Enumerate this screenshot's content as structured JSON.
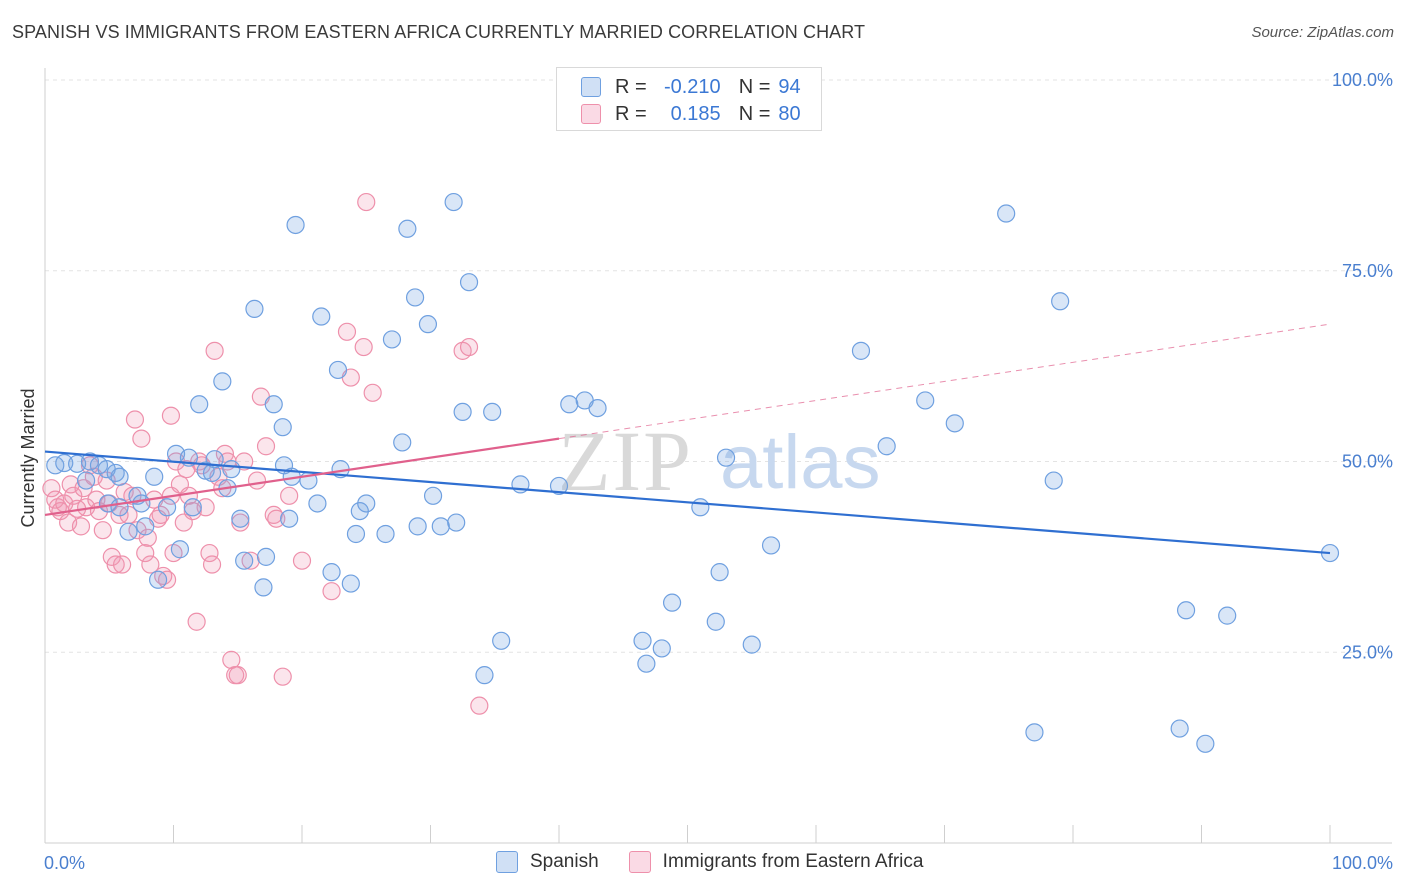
{
  "header": {
    "title": "SPANISH VS IMMIGRANTS FROM EASTERN AFRICA CURRENTLY MARRIED CORRELATION CHART",
    "source": "Source: ZipAtlas.com"
  },
  "legend": {
    "row1": {
      "r_label": "R =",
      "r_value": "-0.210",
      "n_label": "N =",
      "n_value": "94"
    },
    "row2": {
      "r_label": "R =",
      "r_value": "0.185",
      "n_label": "N =",
      "n_value": "80"
    }
  },
  "bottom_legend": {
    "series1": "Spanish",
    "series2": "Immigrants from Eastern Africa"
  },
  "watermark": {
    "zip": "ZIP",
    "atlas": "atlas"
  },
  "colors": {
    "blue": "#6fa0e0",
    "blue_fill": "rgba(120,165,225,0.28)",
    "blue_line": "#2f6fd1",
    "pink": "#ee90ab",
    "pink_fill": "rgba(240,150,180,0.25)",
    "pink_line": "#e0608c"
  },
  "chart_data": {
    "type": "scatter",
    "title": "SPANISH VS IMMIGRANTS FROM EASTERN AFRICA CURRENTLY MARRIED CORRELATION CHART",
    "xlabel": "",
    "ylabel": "Currently Married",
    "xlim": [
      0,
      100
    ],
    "ylim": [
      0,
      100
    ],
    "x_tick_labels": [
      "0.0%",
      "100.0%"
    ],
    "y_tick_labels": [
      "25.0%",
      "50.0%",
      "75.0%",
      "100.0%"
    ],
    "y_ticks": [
      25,
      50,
      75,
      100
    ],
    "grid": true,
    "legend_position": "top-center",
    "series": [
      {
        "name": "Spanish",
        "r": -0.21,
        "n": 94,
        "trend": {
          "x": [
            0,
            100
          ],
          "y": [
            51.3,
            38.0
          ]
        },
        "points": [
          [
            0.8,
            49.5
          ],
          [
            1.5,
            49.8
          ],
          [
            2.5,
            49.7
          ],
          [
            3.2,
            47.5
          ],
          [
            3.5,
            50.0
          ],
          [
            4.2,
            49.5
          ],
          [
            4.8,
            49.0
          ],
          [
            4.9,
            44.5
          ],
          [
            5.5,
            48.5
          ],
          [
            5.8,
            48.0
          ],
          [
            6.5,
            40.8
          ],
          [
            7.2,
            45.5
          ],
          [
            7.5,
            44.5
          ],
          [
            7.8,
            41.5
          ],
          [
            8.5,
            48.0
          ],
          [
            8.8,
            34.5
          ],
          [
            9.5,
            44.0
          ],
          [
            10.2,
            51.0
          ],
          [
            10.5,
            38.5
          ],
          [
            11.2,
            50.5
          ],
          [
            11.5,
            44.0
          ],
          [
            12.0,
            57.5
          ],
          [
            12.5,
            48.8
          ],
          [
            13.0,
            48.5
          ],
          [
            13.2,
            50.3
          ],
          [
            13.8,
            60.5
          ],
          [
            14.2,
            46.5
          ],
          [
            14.5,
            49.0
          ],
          [
            15.2,
            42.5
          ],
          [
            15.5,
            37.0
          ],
          [
            16.3,
            70.0
          ],
          [
            17.0,
            33.5
          ],
          [
            17.2,
            37.5
          ],
          [
            17.8,
            57.5
          ],
          [
            18.6,
            49.5
          ],
          [
            18.5,
            54.5
          ],
          [
            19.0,
            42.5
          ],
          [
            19.2,
            48.0
          ],
          [
            19.5,
            81.0
          ],
          [
            20.5,
            47.5
          ],
          [
            21.2,
            44.5
          ],
          [
            21.5,
            69.0
          ],
          [
            22.3,
            35.5
          ],
          [
            22.8,
            62.0
          ],
          [
            23.0,
            49.0
          ],
          [
            23.8,
            34.0
          ],
          [
            24.2,
            40.5
          ],
          [
            24.5,
            43.5
          ],
          [
            25.0,
            44.5
          ],
          [
            26.5,
            40.5
          ],
          [
            27.0,
            66.0
          ],
          [
            27.8,
            52.5
          ],
          [
            28.2,
            80.5
          ],
          [
            28.8,
            71.5
          ],
          [
            29.0,
            41.5
          ],
          [
            29.8,
            68.0
          ],
          [
            30.2,
            45.5
          ],
          [
            30.8,
            41.5
          ],
          [
            31.8,
            84.0
          ],
          [
            32.0,
            42.0
          ],
          [
            32.5,
            56.5
          ],
          [
            33.0,
            73.5
          ],
          [
            34.2,
            22.0
          ],
          [
            34.8,
            56.5
          ],
          [
            35.5,
            26.5
          ],
          [
            37.0,
            47.0
          ],
          [
            40.0,
            46.8
          ],
          [
            40.8,
            57.5
          ],
          [
            42.0,
            58.0
          ],
          [
            43.0,
            57.0
          ],
          [
            46.5,
            26.5
          ],
          [
            46.8,
            23.5
          ],
          [
            48.0,
            25.5
          ],
          [
            48.8,
            31.5
          ],
          [
            51.0,
            44.0
          ],
          [
            52.2,
            29.0
          ],
          [
            52.5,
            35.5
          ],
          [
            53.0,
            50.5
          ],
          [
            55.0,
            26.0
          ],
          [
            56.5,
            39.0
          ],
          [
            63.5,
            64.5
          ],
          [
            65.5,
            52.0
          ],
          [
            68.5,
            58.0
          ],
          [
            70.8,
            55.0
          ],
          [
            74.8,
            82.5
          ],
          [
            77.0,
            14.5
          ],
          [
            78.5,
            47.5
          ],
          [
            79.0,
            71.0
          ],
          [
            88.3,
            15.0
          ],
          [
            88.8,
            30.5
          ],
          [
            90.3,
            13.0
          ],
          [
            92.0,
            29.8
          ],
          [
            100.0,
            38.0
          ],
          [
            5.8,
            44.0
          ]
        ]
      },
      {
        "name": "Immigrants from Eastern Africa",
        "r": 0.185,
        "n": 80,
        "trend": {
          "x": [
            0,
            40
          ],
          "y": [
            43.0,
            53.0
          ]
        },
        "trend_dashed": {
          "x": [
            40,
            100
          ],
          "y": [
            53.0,
            68.0
          ]
        },
        "points": [
          [
            0.5,
            46.5
          ],
          [
            0.8,
            45.0
          ],
          [
            1.0,
            44.0
          ],
          [
            1.2,
            43.5
          ],
          [
            1.5,
            44.5
          ],
          [
            1.8,
            42.0
          ],
          [
            2.0,
            47.0
          ],
          [
            2.2,
            45.5
          ],
          [
            2.5,
            43.8
          ],
          [
            2.8,
            41.5
          ],
          [
            3.0,
            46.5
          ],
          [
            3.2,
            44.0
          ],
          [
            3.5,
            49.5
          ],
          [
            3.8,
            48.0
          ],
          [
            4.0,
            45.0
          ],
          [
            4.2,
            43.5
          ],
          [
            4.5,
            41.0
          ],
          [
            4.8,
            47.5
          ],
          [
            5.0,
            44.5
          ],
          [
            5.2,
            37.5
          ],
          [
            5.5,
            36.5
          ],
          [
            5.8,
            43.0
          ],
          [
            6.0,
            36.5
          ],
          [
            6.2,
            46.0
          ],
          [
            6.5,
            43.0
          ],
          [
            6.8,
            45.5
          ],
          [
            7.0,
            55.5
          ],
          [
            7.2,
            41.0
          ],
          [
            7.5,
            53.0
          ],
          [
            7.8,
            38.0
          ],
          [
            8.0,
            40.0
          ],
          [
            8.2,
            36.5
          ],
          [
            8.5,
            45.0
          ],
          [
            8.8,
            42.5
          ],
          [
            9.0,
            43.0
          ],
          [
            9.2,
            35.0
          ],
          [
            9.5,
            34.5
          ],
          [
            9.8,
            56.0
          ],
          [
            10.0,
            38.0
          ],
          [
            10.2,
            50.0
          ],
          [
            10.5,
            47.0
          ],
          [
            10.8,
            42.0
          ],
          [
            11.0,
            49.0
          ],
          [
            11.2,
            45.5
          ],
          [
            11.5,
            43.5
          ],
          [
            11.8,
            29.0
          ],
          [
            12.0,
            50.0
          ],
          [
            12.2,
            49.5
          ],
          [
            12.5,
            44.0
          ],
          [
            12.8,
            38.0
          ],
          [
            13.0,
            36.5
          ],
          [
            13.2,
            64.5
          ],
          [
            13.5,
            48.0
          ],
          [
            13.8,
            46.5
          ],
          [
            14.0,
            51.0
          ],
          [
            14.2,
            50.0
          ],
          [
            14.5,
            24.0
          ],
          [
            14.8,
            22.0
          ],
          [
            15.0,
            22.0
          ],
          [
            15.5,
            50.0
          ],
          [
            16.0,
            37.0
          ],
          [
            16.5,
            47.5
          ],
          [
            16.8,
            58.5
          ],
          [
            17.2,
            52.0
          ],
          [
            17.8,
            43.0
          ],
          [
            18.0,
            42.5
          ],
          [
            18.5,
            21.8
          ],
          [
            19.0,
            45.5
          ],
          [
            20.0,
            37.0
          ],
          [
            22.3,
            33.0
          ],
          [
            23.5,
            67.0
          ],
          [
            23.8,
            61.0
          ],
          [
            24.8,
            65.0
          ],
          [
            25.0,
            84.0
          ],
          [
            25.5,
            59.0
          ],
          [
            32.5,
            64.5
          ],
          [
            33.0,
            65.0
          ],
          [
            33.8,
            18.0
          ],
          [
            15.2,
            42.0
          ],
          [
            9.8,
            45.5
          ]
        ]
      }
    ]
  }
}
